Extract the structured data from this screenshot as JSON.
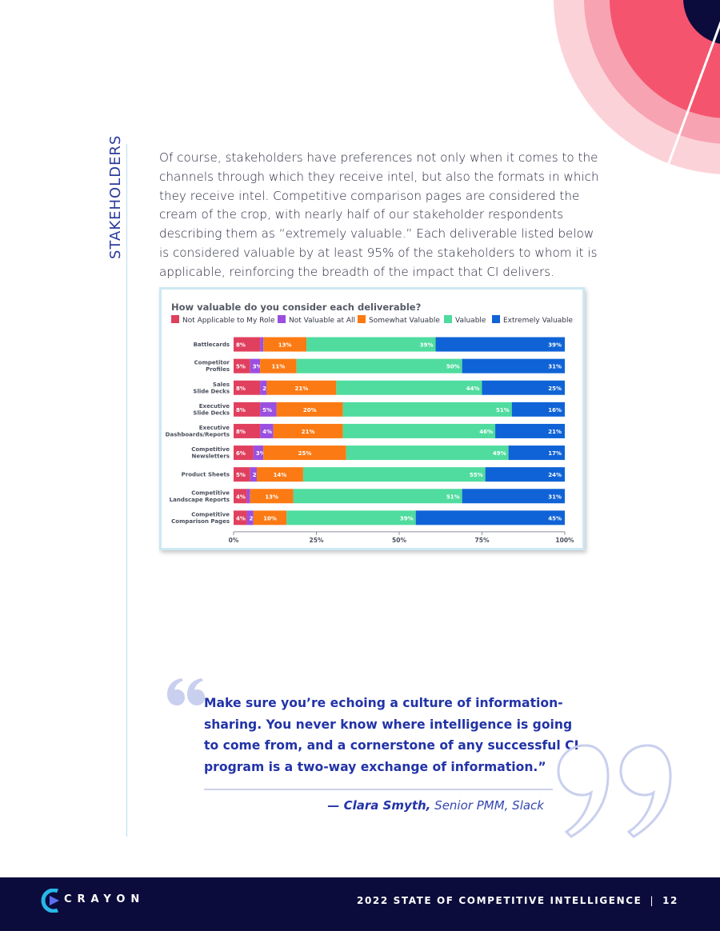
{
  "sidebar": {
    "section_label": "STAKEHOLDERS"
  },
  "intro": {
    "paragraph": "Of course, stakeholders have preferences not only when it comes to the channels through which they receive intel, but also the formats in which they receive intel. Competitive comparison pages are considered the cream of the crop, with nearly half of our stakeholder respondents describing them as “extremely valuable.” Each deliverable listed below is considered valuable by at least 95% of the stakeholders to whom it is applicable, reinforcing the breadth of the impact that CI delivers."
  },
  "chart_data": {
    "type": "bar",
    "orientation": "horizontal",
    "stacked": true,
    "title": "How valuable do you consider each deliverable?",
    "categories": [
      "Battlecards",
      "Competitor Profiles",
      "Sales Slide Decks",
      "Executive Slide Decks",
      "Executive Dashboards/Reports",
      "Competitive Newsletters",
      "Product Sheets",
      "Competitive Landscape Reports",
      "Competitive Comparison Pages"
    ],
    "category_lines": [
      [
        "Battlecards"
      ],
      [
        "Competitor",
        "Profiles"
      ],
      [
        "Sales",
        "Slide Decks"
      ],
      [
        "Executive",
        "Slide Decks"
      ],
      [
        "Executive",
        "Dashboards/Reports"
      ],
      [
        "Competitive",
        "Newsletters"
      ],
      [
        "Product Sheets"
      ],
      [
        "Competitive",
        "Landscape Reports"
      ],
      [
        "Competitive",
        "Comparison Pages"
      ]
    ],
    "series": [
      {
        "name": "Not Applicable to My Role",
        "color": "#e0405e",
        "values": [
          8,
          5,
          8,
          8,
          8,
          6,
          5,
          4,
          4
        ]
      },
      {
        "name": "Not Valuable at All",
        "color": "#9b4fe0",
        "values": [
          1,
          3,
          2,
          5,
          4,
          3,
          2,
          1,
          2
        ]
      },
      {
        "name": "Somewhat Valuable",
        "color": "#fb7a14",
        "values": [
          13,
          11,
          21,
          20,
          21,
          25,
          14,
          13,
          10
        ]
      },
      {
        "name": "Valuable",
        "color": "#4fdc9e",
        "values": [
          39,
          50,
          44,
          51,
          46,
          49,
          55,
          51,
          39
        ]
      },
      {
        "name": "Extremely Valuable",
        "color": "#0f63d6",
        "values": [
          39,
          31,
          25,
          16,
          21,
          17,
          24,
          31,
          45
        ]
      }
    ],
    "xlim": [
      0,
      100
    ],
    "x_ticks": [
      "0%",
      "25%",
      "50%",
      "75%",
      "100%"
    ],
    "value_suffix": "%",
    "legend_position": "top-left",
    "grid": false
  },
  "quote": {
    "text": "Make sure you’re echoing a culture of information-sharing. You never know where intelligence is going to come from, and a cornerstone of any successful CI program is a two-way exchange of information.”",
    "author": "— Clara Smyth,",
    "role": "Senior PMM, Slack"
  },
  "footer": {
    "brand": "CRAYON",
    "report_title": "2022 STATE OF COMPETITIVE INTELLIGENCE",
    "separator": "|",
    "page_number": "12"
  },
  "colors": {
    "navy": "#0c0c3c",
    "quote_blue": "#2233a8",
    "deco_coral": "#f5546e",
    "deco_pink": "#f7a3b1",
    "deco_light": "#fcd2d9"
  }
}
